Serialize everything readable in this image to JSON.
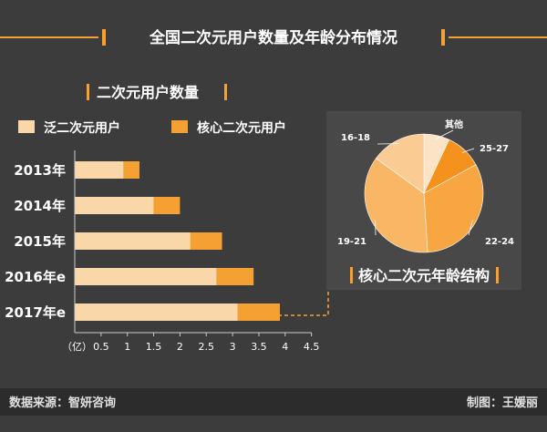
{
  "title": "全国二次元用户数量及年龄分布情况",
  "footer": {
    "source": "数据来源：智妍咨询",
    "credit": "制图：王媛丽"
  },
  "colors": {
    "background": "#3c3c3c",
    "accent": "#f5a033",
    "light": "#f9d7a8",
    "line": "#f5a033",
    "footer_bg": "#2c2c2c",
    "pie_panel": "#484848"
  },
  "chart_data": [
    {
      "type": "bar",
      "title": "二次元用户数量",
      "orientation": "horizontal",
      "stacked": true,
      "categories": [
        "2013年",
        "2014年",
        "2015年",
        "2016年e",
        "2017年e"
      ],
      "series": [
        {
          "name": "泛二次元用户",
          "values": [
            0.93,
            1.5,
            2.2,
            2.7,
            3.1
          ],
          "color": "#f9d7a8"
        },
        {
          "name": "核心二次元用户",
          "values": [
            0.3,
            0.5,
            0.6,
            0.7,
            0.8
          ],
          "color": "#f5a033"
        }
      ],
      "xunit": "（亿）",
      "xticks": [
        "0.5",
        "1",
        "1.5",
        "2",
        "2.5",
        "3",
        "3.5",
        "4",
        "4.5"
      ],
      "xlim": [
        0,
        4.5
      ],
      "legend": "top-left"
    },
    {
      "type": "pie",
      "title": "核心二次元年龄结构",
      "slices": [
        {
          "label": "其他",
          "value": 7,
          "color": "#fbe3c6"
        },
        {
          "label": "25-27",
          "value": 10,
          "color": "#f5921e"
        },
        {
          "label": "22-24",
          "value": 32,
          "color": "#f7a641"
        },
        {
          "label": "19-21",
          "value": 36,
          "color": "#f9b664"
        },
        {
          "label": "16-18",
          "value": 15,
          "color": "#fbcb94"
        }
      ]
    }
  ]
}
